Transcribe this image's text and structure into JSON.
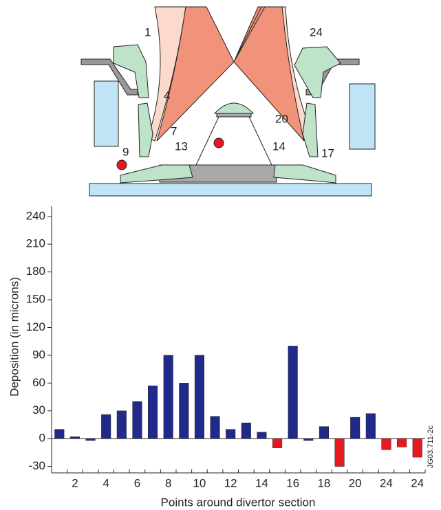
{
  "diagram": {
    "labels": [
      "1",
      "4",
      "7",
      "9",
      "13",
      "24",
      "20",
      "14",
      "17"
    ],
    "code": "JG03.711-2c"
  },
  "chart_data": {
    "type": "bar",
    "y_label": "Deposition (in microns)",
    "x_label": "Points around divertor section",
    "categories": [
      null,
      "2",
      null,
      "4",
      null,
      "6",
      null,
      "8",
      null,
      "10",
      null,
      "12",
      null,
      "14",
      null,
      "16",
      null,
      "18",
      null,
      "20",
      null,
      "24",
      null,
      "24"
    ],
    "values": [
      10,
      2,
      -2,
      26,
      30,
      40,
      57,
      90,
      60,
      90,
      24,
      10,
      17,
      7,
      -10,
      100,
      -2,
      13,
      -30,
      23,
      27,
      -12,
      -9,
      -20
    ],
    "colors": [
      "#1f2a8a",
      "#1f2a8a",
      "#1f2a8a",
      "#1f2a8a",
      "#1f2a8a",
      "#1f2a8a",
      "#1f2a8a",
      "#1f2a8a",
      "#1f2a8a",
      "#1f2a8a",
      "#1f2a8a",
      "#1f2a8a",
      "#1f2a8a",
      "#1f2a8a",
      "#e8191e",
      "#1f2a8a",
      "#1f2a8a",
      "#1f2a8a",
      "#e8191e",
      "#1f2a8a",
      "#1f2a8a",
      "#e8191e",
      "#e8191e",
      "#e8191e"
    ],
    "ylim": [
      -37,
      251
    ],
    "yticks": [
      -30,
      0,
      30,
      60,
      90,
      120,
      150,
      180,
      210,
      240
    ],
    "yticks_labels": null
  }
}
